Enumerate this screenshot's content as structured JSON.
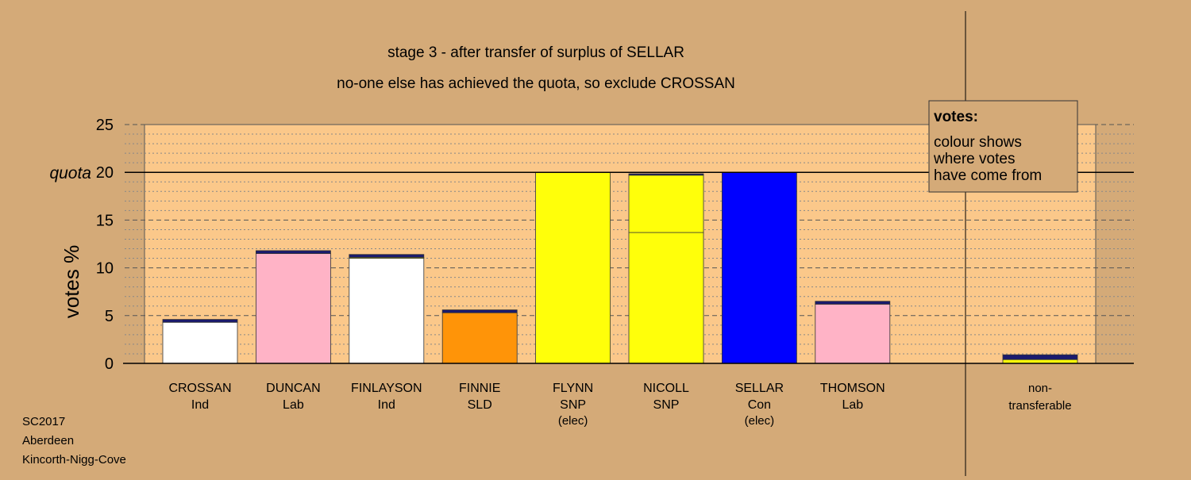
{
  "colors": {
    "background": "#d4aa78",
    "plot_bg": "#fbc88a",
    "Ind": "#ffffff",
    "Lab": "#ffb3c6",
    "SLD": "#ff9408",
    "SNP": "#ffff0a",
    "Con": "#0000ff",
    "transfer": "#1a1a6e"
  },
  "chart_data": {
    "type": "bar",
    "stacked": true,
    "title": "stage 3 - after transfer of surplus of SELLAR",
    "subtitle": "no-one else has achieved the quota, so exclude CROSSAN",
    "ylabel": "votes %",
    "ylim": [
      0,
      25
    ],
    "yticks": [
      0,
      5,
      10,
      15,
      20,
      25
    ],
    "quota": 20,
    "quota_label": "quota",
    "candidates": [
      {
        "name": "CROSSAN",
        "party": "Ind",
        "note": "",
        "segments": [
          {
            "source": "Ind",
            "value": 4.3
          },
          {
            "source": "transfer",
            "value": 0.3
          }
        ]
      },
      {
        "name": "DUNCAN",
        "party": "Lab",
        "note": "",
        "segments": [
          {
            "source": "Lab",
            "value": 11.5
          },
          {
            "source": "transfer",
            "value": 0.3
          }
        ]
      },
      {
        "name": "FINLAYSON",
        "party": "Ind",
        "note": "",
        "segments": [
          {
            "source": "Ind",
            "value": 11.0
          },
          {
            "source": "SNP",
            "value": 0.1
          },
          {
            "source": "transfer",
            "value": 0.3
          }
        ]
      },
      {
        "name": "FINNIE",
        "party": "SLD",
        "note": "",
        "segments": [
          {
            "source": "SLD",
            "value": 5.3
          },
          {
            "source": "transfer",
            "value": 0.3
          }
        ]
      },
      {
        "name": "FLYNN",
        "party": "SNP",
        "note": "(elec)",
        "segments": [
          {
            "source": "SNP",
            "value": 20.0
          }
        ]
      },
      {
        "name": "NICOLL",
        "party": "SNP",
        "note": "",
        "segments": [
          {
            "source": "SNP",
            "value": 13.7
          },
          {
            "source": "SNP",
            "value": 6.0
          },
          {
            "source": "transfer",
            "value": 0.15
          }
        ]
      },
      {
        "name": "SELLAR",
        "party": "Con",
        "note": "(elec)",
        "segments": [
          {
            "source": "Con",
            "value": 20.0
          }
        ]
      },
      {
        "name": "THOMSON",
        "party": "Lab",
        "note": "",
        "segments": [
          {
            "source": "Lab",
            "value": 6.2
          },
          {
            "source": "transfer",
            "value": 0.3
          }
        ]
      }
    ],
    "nontransferable": {
      "label_line1": "non-",
      "label_line2": "transferable",
      "segments": [
        {
          "source": "SNP",
          "value": 0.4
        },
        {
          "source": "transfer",
          "value": 0.5
        }
      ]
    },
    "legend": {
      "title": "votes:",
      "lines": [
        "colour shows",
        "where votes",
        "have come from"
      ],
      "placement": "top-right"
    }
  },
  "footer": {
    "line1": "SC2017",
    "line2": "Aberdeen",
    "line3": "Kincorth-Nigg-Cove"
  }
}
